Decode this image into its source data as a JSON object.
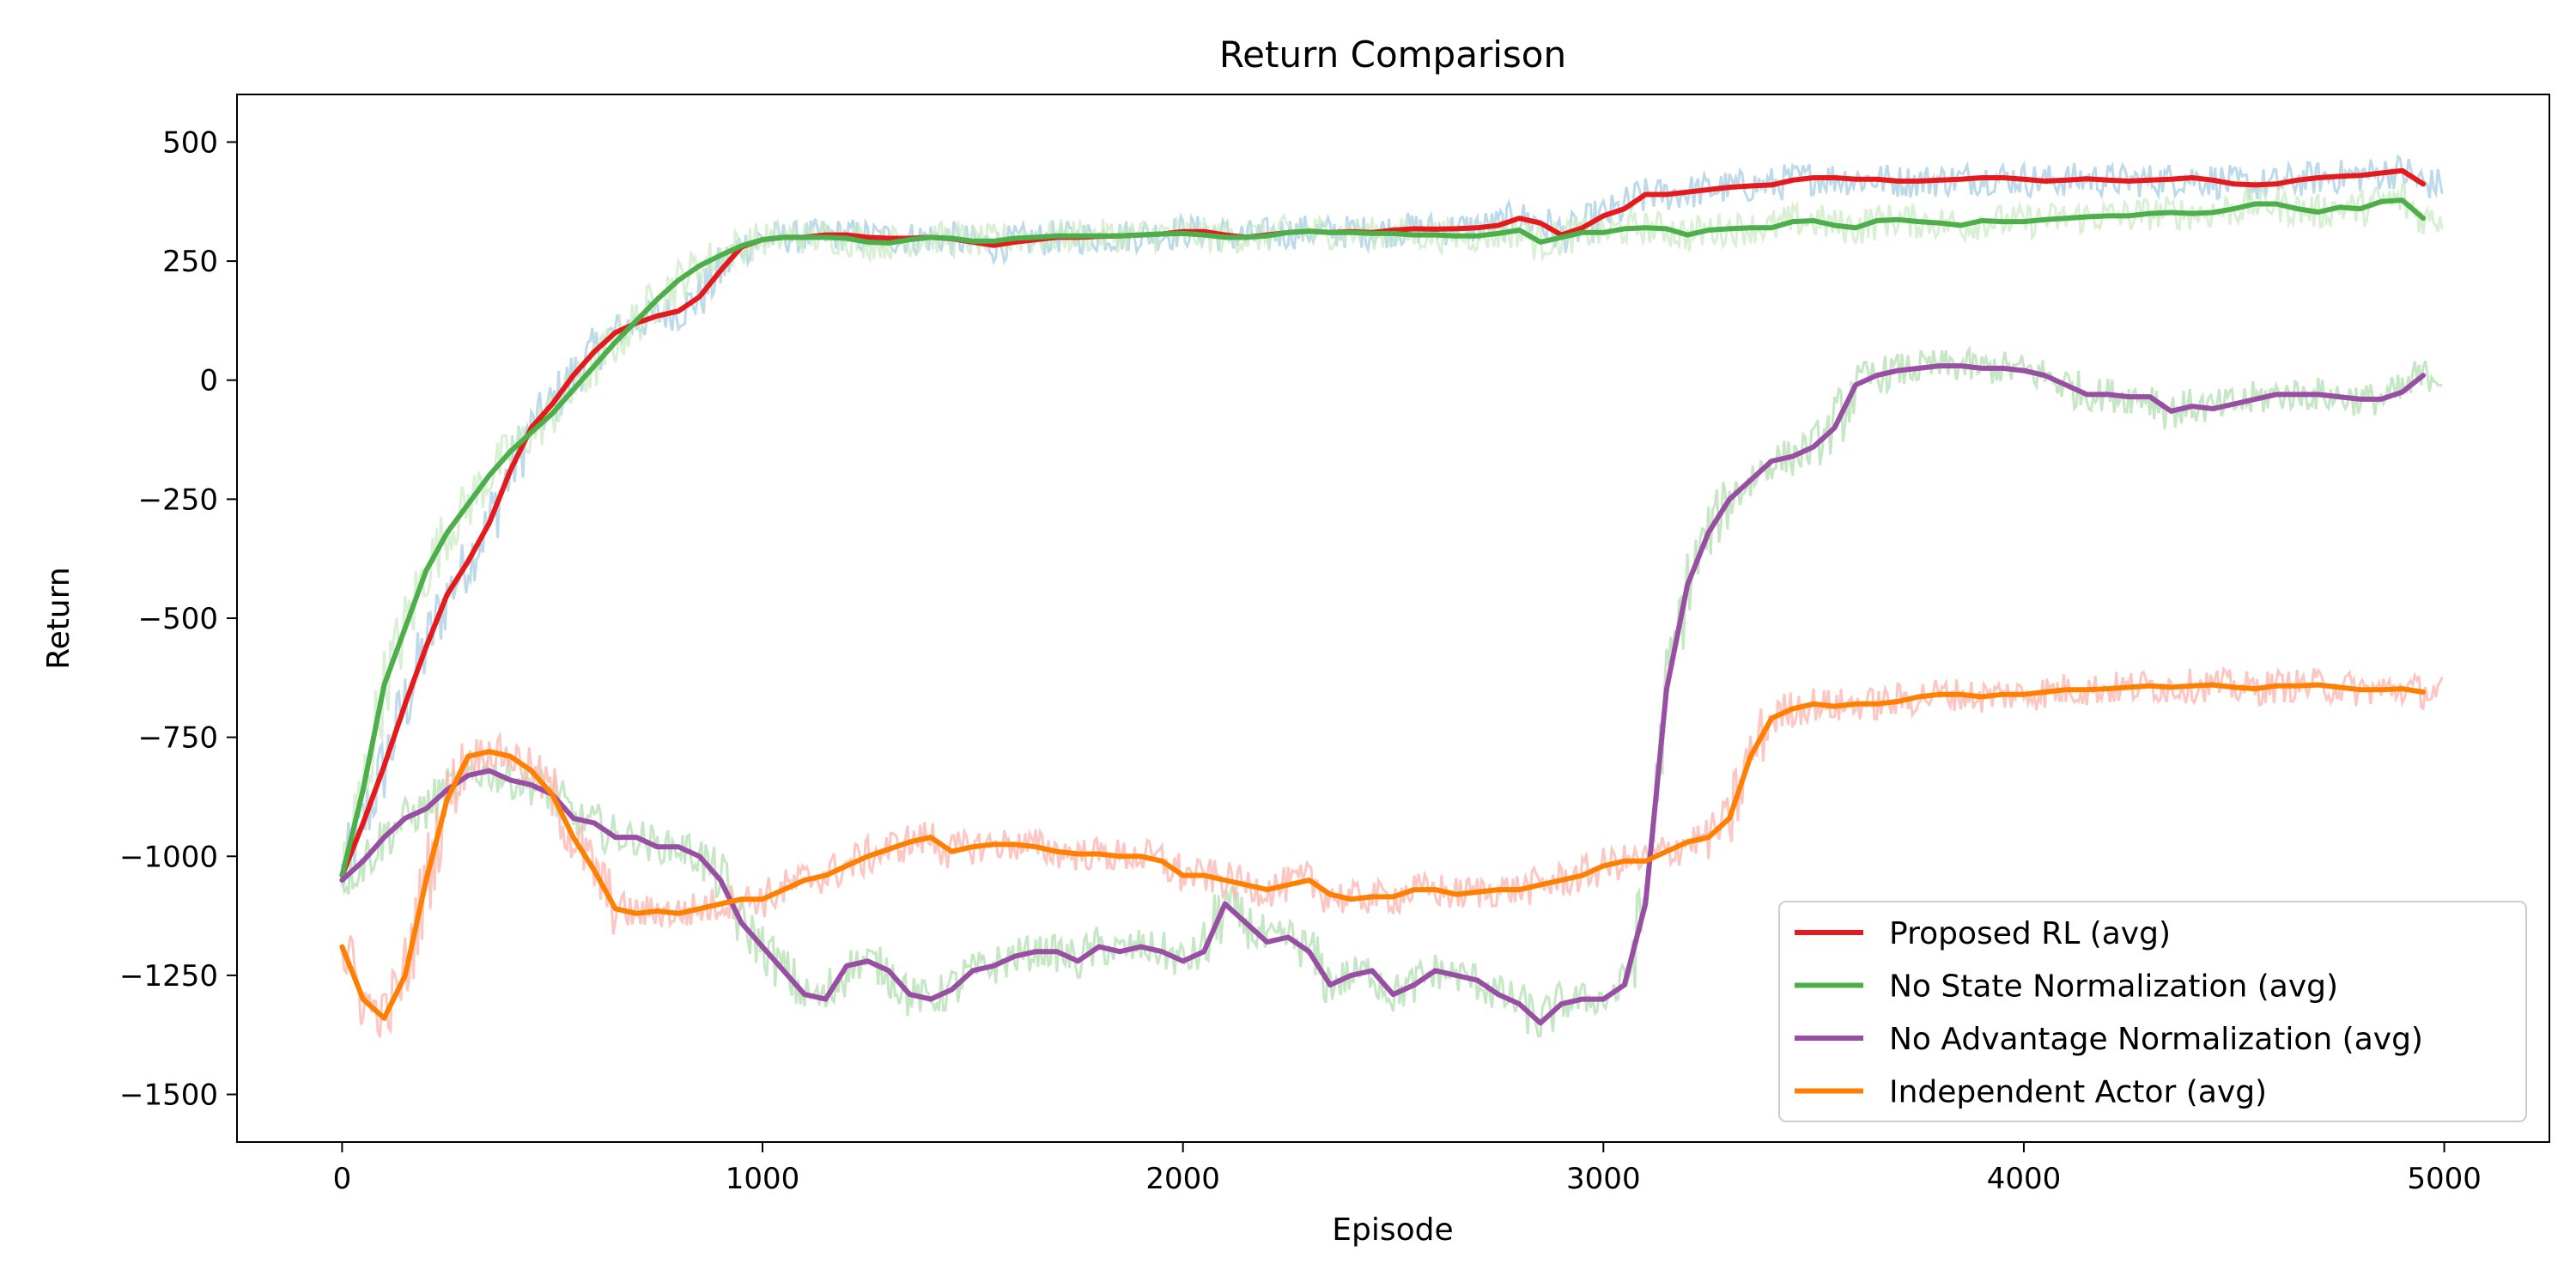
{
  "chart_data": {
    "type": "line",
    "title": "Return Comparison",
    "xlabel": "Episode",
    "ylabel": "Return",
    "xlim": [
      -250,
      5250
    ],
    "ylim": [
      -1600,
      600
    ],
    "xticks": [
      0,
      1000,
      2000,
      3000,
      4000,
      5000
    ],
    "yticks": [
      500,
      250,
      0,
      -250,
      -500,
      -750,
      -1000,
      -1250,
      -1500
    ],
    "xtick_labels": [
      "0",
      "1000",
      "2000",
      "3000",
      "4000",
      "5000"
    ],
    "ytick_labels": [
      "500",
      "250",
      "0",
      "−250",
      "−500",
      "−750",
      "−1000",
      "−1250",
      "−1500"
    ],
    "grid": false,
    "legend_position": "lower-right",
    "x": [
      0,
      50,
      100,
      150,
      200,
      250,
      300,
      350,
      400,
      450,
      500,
      550,
      600,
      650,
      700,
      750,
      800,
      850,
      900,
      950,
      1000,
      1050,
      1100,
      1150,
      1200,
      1250,
      1300,
      1350,
      1400,
      1450,
      1500,
      1550,
      1600,
      1650,
      1700,
      1750,
      1800,
      1850,
      1900,
      1950,
      2000,
      2050,
      2100,
      2150,
      2200,
      2250,
      2300,
      2350,
      2400,
      2450,
      2500,
      2550,
      2600,
      2650,
      2700,
      2750,
      2800,
      2850,
      2900,
      2950,
      3000,
      3050,
      3100,
      3150,
      3200,
      3250,
      3300,
      3350,
      3400,
      3450,
      3500,
      3550,
      3600,
      3650,
      3700,
      3750,
      3800,
      3850,
      3900,
      3950,
      4000,
      4050,
      4100,
      4150,
      4200,
      4250,
      4300,
      4350,
      4400,
      4450,
      4500,
      4550,
      4600,
      4650,
      4700,
      4750,
      4800,
      4850,
      4900,
      4950
    ],
    "series": [
      {
        "name": "Proposed RL (avg)",
        "color": "#e41a1c",
        "raw_color": "#a6cee3",
        "values": [
          -1040,
          -930,
          -810,
          -680,
          -560,
          -450,
          -380,
          -300,
          -190,
          -100,
          -50,
          10,
          60,
          100,
          120,
          135,
          145,
          175,
          230,
          280,
          295,
          300,
          300,
          305,
          305,
          300,
          298,
          298,
          300,
          297,
          290,
          283,
          290,
          295,
          300,
          300,
          302,
          303,
          305,
          307,
          312,
          312,
          305,
          300,
          305,
          310,
          313,
          310,
          312,
          310,
          315,
          318,
          317,
          318,
          320,
          325,
          340,
          330,
          305,
          320,
          345,
          360,
          390,
          390,
          395,
          400,
          405,
          408,
          410,
          420,
          425,
          425,
          422,
          422,
          418,
          418,
          420,
          422,
          425,
          425,
          422,
          418,
          420,
          423,
          420,
          418,
          420,
          422,
          425,
          420,
          412,
          410,
          412,
          420,
          425,
          428,
          430,
          435,
          440,
          412
        ]
      },
      {
        "name": "No State Normalization (avg)",
        "color": "#4daf4a",
        "raw_color": "#ccebc5",
        "values": [
          -1040,
          -860,
          -640,
          -520,
          -400,
          -320,
          -260,
          -200,
          -150,
          -110,
          -70,
          -20,
          30,
          80,
          125,
          170,
          210,
          240,
          262,
          282,
          295,
          300,
          300,
          300,
          298,
          290,
          288,
          295,
          300,
          298,
          292,
          292,
          298,
          300,
          303,
          303,
          303,
          303,
          305,
          307,
          308,
          305,
          300,
          300,
          303,
          310,
          313,
          310,
          310,
          308,
          308,
          305,
          305,
          303,
          303,
          308,
          315,
          290,
          300,
          310,
          310,
          318,
          320,
          318,
          305,
          315,
          318,
          320,
          320,
          333,
          335,
          325,
          320,
          335,
          337,
          333,
          330,
          325,
          335,
          333,
          333,
          337,
          340,
          343,
          345,
          345,
          350,
          352,
          350,
          352,
          360,
          370,
          370,
          360,
          353,
          363,
          360,
          375,
          378,
          340
        ]
      },
      {
        "name": "No Advantage Normalization (avg)",
        "color": "#984ea3",
        "raw_color": "#b2dfb0",
        "values": [
          -1050,
          -1010,
          -960,
          -920,
          -900,
          -860,
          -830,
          -820,
          -840,
          -850,
          -870,
          -920,
          -930,
          -960,
          -960,
          -980,
          -980,
          -1000,
          -1050,
          -1140,
          -1190,
          -1240,
          -1290,
          -1300,
          -1230,
          -1220,
          -1240,
          -1290,
          -1300,
          -1280,
          -1240,
          -1230,
          -1210,
          -1200,
          -1200,
          -1220,
          -1190,
          -1200,
          -1190,
          -1200,
          -1220,
          -1200,
          -1100,
          -1140,
          -1180,
          -1170,
          -1200,
          -1270,
          -1250,
          -1240,
          -1290,
          -1270,
          -1240,
          -1250,
          -1260,
          -1290,
          -1310,
          -1350,
          -1310,
          -1300,
          -1300,
          -1270,
          -1100,
          -650,
          -430,
          -320,
          -250,
          -210,
          -170,
          -160,
          -140,
          -100,
          -10,
          10,
          20,
          25,
          30,
          30,
          25,
          25,
          20,
          10,
          -10,
          -30,
          -30,
          -35,
          -35,
          -65,
          -55,
          -60,
          -50,
          -40,
          -30,
          -30,
          -30,
          -35,
          -40,
          -40,
          -25,
          10
        ]
      },
      {
        "name": "Independent Actor (avg)",
        "color": "#ff7f00",
        "raw_color": "#fbb4ae",
        "values": [
          -1190,
          -1300,
          -1340,
          -1250,
          -1050,
          -880,
          -790,
          -780,
          -790,
          -820,
          -870,
          -960,
          -1030,
          -1110,
          -1120,
          -1115,
          -1120,
          -1110,
          -1100,
          -1090,
          -1090,
          -1070,
          -1050,
          -1040,
          -1020,
          -1000,
          -985,
          -970,
          -960,
          -990,
          -980,
          -975,
          -975,
          -980,
          -990,
          -995,
          -995,
          -1000,
          -1000,
          -1010,
          -1040,
          -1040,
          -1050,
          -1060,
          -1070,
          -1060,
          -1050,
          -1080,
          -1090,
          -1085,
          -1085,
          -1070,
          -1070,
          -1080,
          -1075,
          -1070,
          -1070,
          -1060,
          -1050,
          -1040,
          -1020,
          -1010,
          -1010,
          -990,
          -970,
          -960,
          -920,
          -790,
          -710,
          -690,
          -680,
          -685,
          -680,
          -680,
          -675,
          -665,
          -660,
          -660,
          -665,
          -660,
          -660,
          -655,
          -650,
          -650,
          -648,
          -645,
          -642,
          -645,
          -642,
          -640,
          -645,
          -648,
          -642,
          -642,
          -640,
          -645,
          -650,
          -650,
          -648,
          -655
        ]
      }
    ]
  }
}
